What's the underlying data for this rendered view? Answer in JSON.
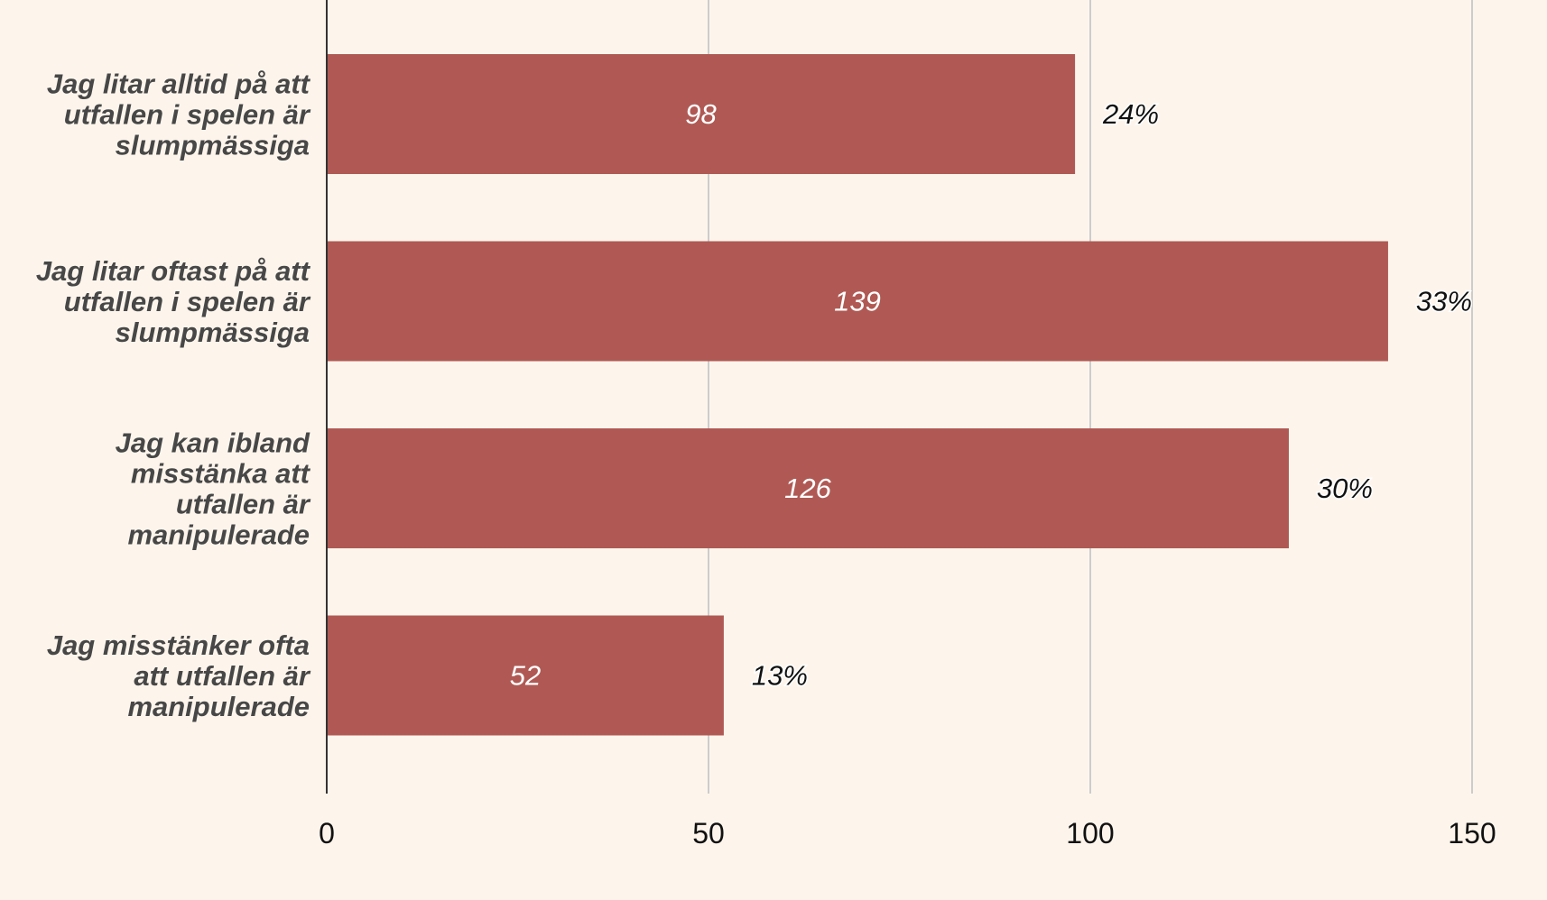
{
  "chart_data": {
    "type": "bar",
    "orientation": "horizontal",
    "categories": [
      [
        "Jag litar alltid på att",
        "utfallen i spelen är",
        "slumpmässiga"
      ],
      [
        "Jag litar oftast på att",
        "utfallen i spelen är",
        "slumpmässiga"
      ],
      [
        "Jag kan ibland",
        "misstänka att",
        "utfallen är",
        "manipulerade"
      ],
      [
        "Jag misstänker ofta",
        "att utfallen är",
        "manipulerade"
      ]
    ],
    "values": [
      98,
      139,
      126,
      52
    ],
    "value_labels": [
      "98",
      "139",
      "126",
      "52"
    ],
    "percent_labels": [
      "24%",
      "33%",
      "30%",
      "13%"
    ],
    "xlim": [
      0,
      150
    ],
    "x_ticks": [
      0,
      50,
      100,
      150
    ],
    "x_tick_labels": [
      "0",
      "50",
      "100",
      "150"
    ],
    "grid": true,
    "legend": "none",
    "colors": {
      "bar": "#b05954",
      "background": "#fdf5ec",
      "grid": "#cccccc",
      "axis": "#333333"
    }
  }
}
